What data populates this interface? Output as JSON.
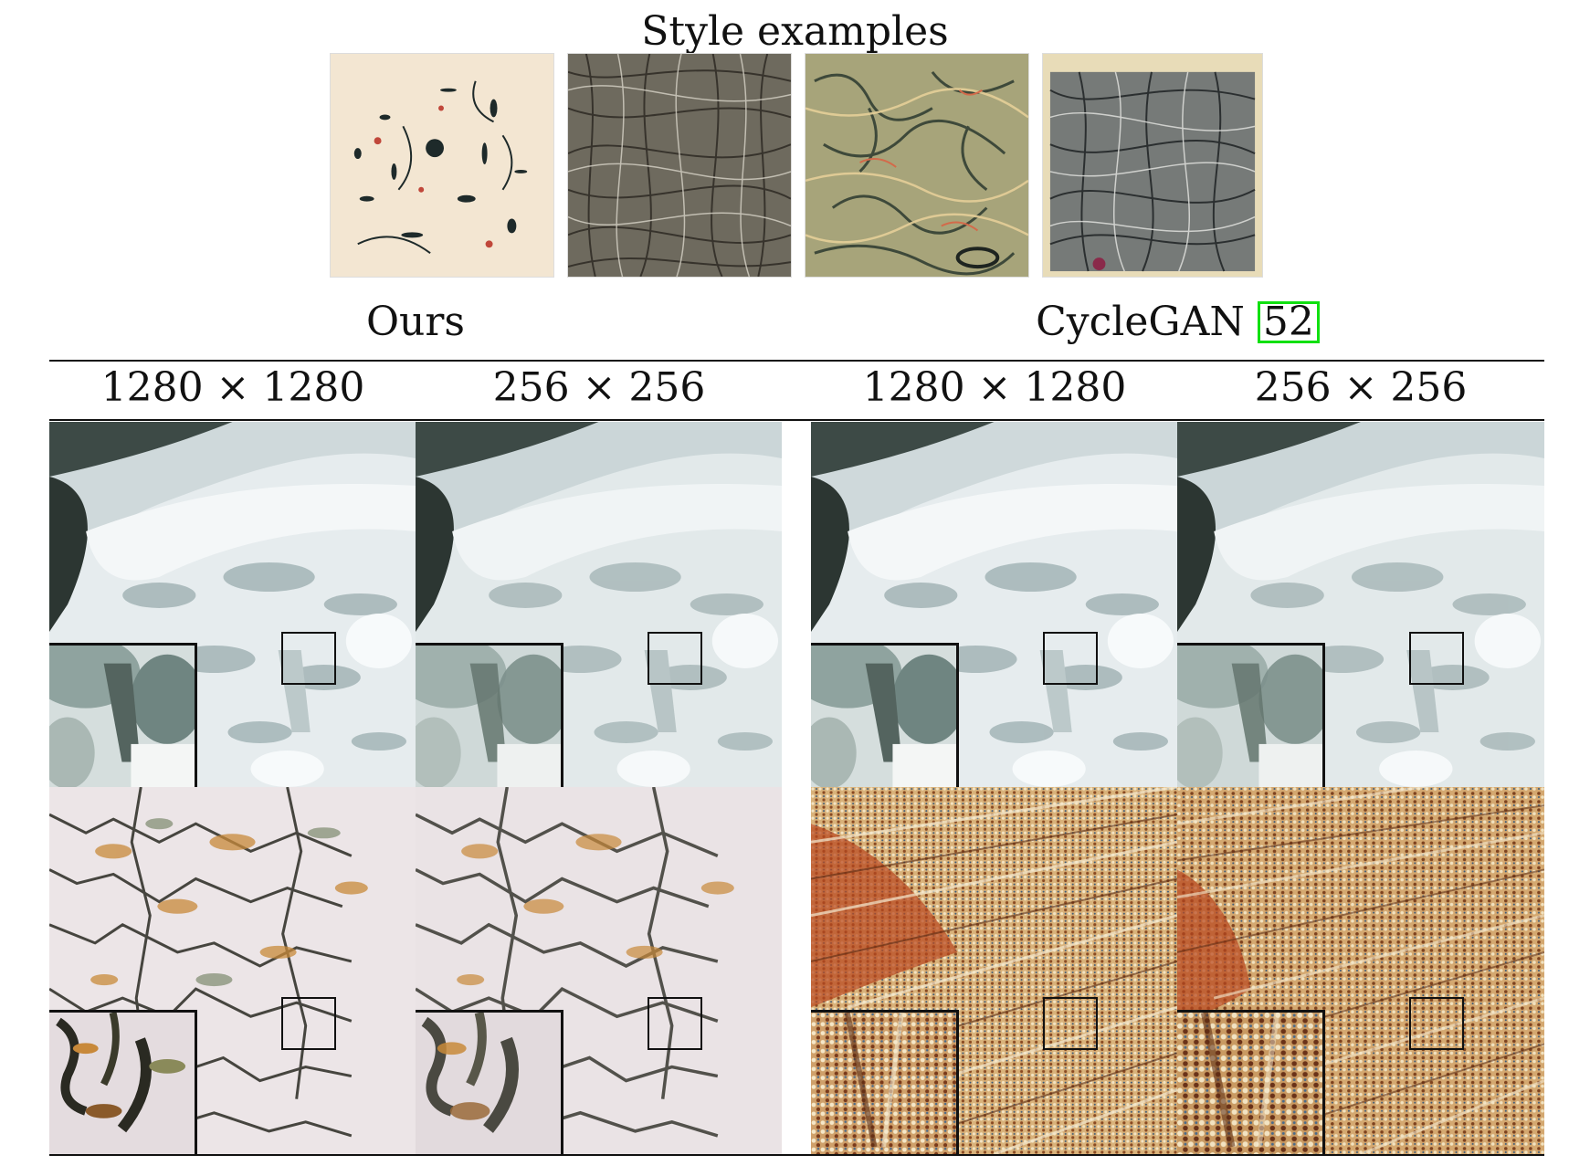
{
  "figure": {
    "style_title": "Style examples",
    "methods": [
      {
        "name": "Ours",
        "citation": ""
      },
      {
        "name": "CycleGAN",
        "citation": "52"
      }
    ],
    "resolution_labels": [
      "1280 × 1280",
      "256 × 256",
      "1280 × 1280",
      "256 × 256"
    ],
    "colors": {
      "citation_box": "#10e010",
      "snow_light": "#e8eef0",
      "snow_shadow": "#8fa5a8",
      "rock_dark": "#3a4a44",
      "sky_blue": "#5a7a85",
      "paint_bg": "#efe9ea",
      "paint_dark": "#2a2a22",
      "paint_ochre": "#c88a3a",
      "cyclegan_red": "#b84a22",
      "cyclegan_cream": "#e8d3a4"
    }
  }
}
